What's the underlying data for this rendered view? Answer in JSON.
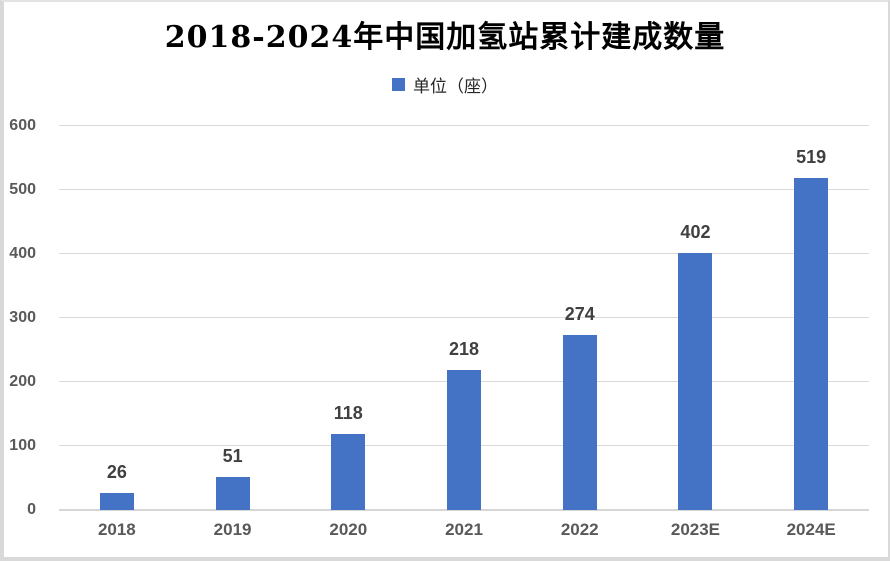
{
  "title": "2018-2024年中国加氢站累计建成数量",
  "legend": {
    "label": "单位（座）",
    "swatch_color": "#4472C4"
  },
  "colors": {
    "bar": "#4472C4",
    "gridline": "#D9D9D9",
    "axis_label": "#595959",
    "data_label": "#404040",
    "title_text": "#000000",
    "frame_border": "#D9D9D9"
  },
  "chart_data": {
    "type": "bar",
    "title": "2018-2024年中国加氢站累计建成数量",
    "categories": [
      "2018",
      "2019",
      "2020",
      "2021",
      "2022",
      "2023E",
      "2024E"
    ],
    "values": [
      26,
      51,
      118,
      218,
      274,
      402,
      519
    ],
    "data_labels": [
      "26",
      "51",
      "118",
      "218",
      "274",
      "402",
      "519"
    ],
    "series_name": "单位（座）",
    "xlabel": "",
    "ylabel": "",
    "ylim": [
      0,
      600
    ],
    "yticks": [
      0,
      100,
      200,
      300,
      400,
      500,
      600
    ],
    "grid": true,
    "legend_position": "top",
    "bar_color": "#4472C4"
  }
}
